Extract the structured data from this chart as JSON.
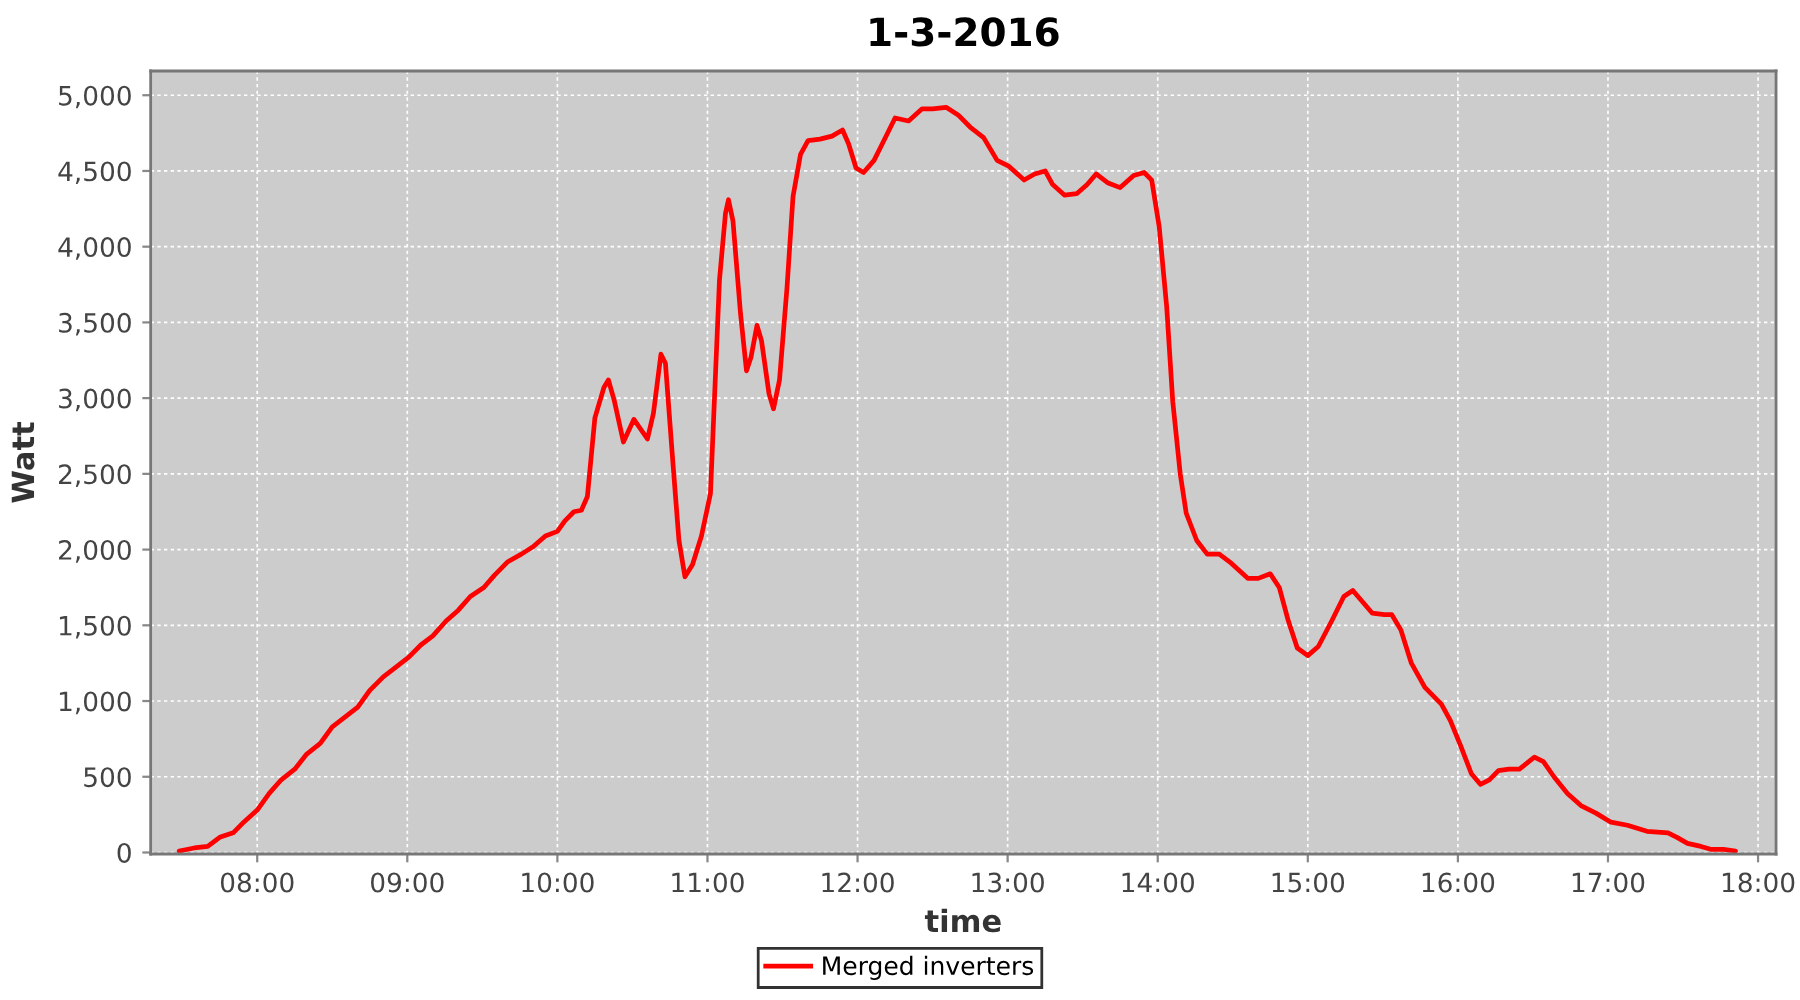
{
  "chart_data": {
    "type": "line",
    "title": "1-3-2016",
    "xlabel": "time",
    "ylabel": "Watt",
    "xlim": [
      7.29,
      18.12
    ],
    "xticks": [
      {
        "value": 8,
        "label": "08:00"
      },
      {
        "value": 9,
        "label": "09:00"
      },
      {
        "value": 10,
        "label": "10:00"
      },
      {
        "value": 11,
        "label": "11:00"
      },
      {
        "value": 12,
        "label": "12:00"
      },
      {
        "value": 13,
        "label": "13:00"
      },
      {
        "value": 14,
        "label": "14:00"
      },
      {
        "value": 15,
        "label": "15:00"
      },
      {
        "value": 16,
        "label": "16:00"
      },
      {
        "value": 17,
        "label": "17:00"
      },
      {
        "value": 18,
        "label": "18:00"
      }
    ],
    "ylim": [
      -10,
      5160
    ],
    "yticks": [
      0,
      500,
      {
        "value": 1000,
        "label": "1,000"
      },
      {
        "value": 1500,
        "label": "1,500"
      },
      {
        "value": 2000,
        "label": "2,000"
      },
      {
        "value": 2500,
        "label": "2,500"
      },
      {
        "value": 3000,
        "label": "3,000"
      },
      {
        "value": 3500,
        "label": "3,500"
      },
      {
        "value": 4000,
        "label": "4,000"
      },
      {
        "value": 4500,
        "label": "4,500"
      },
      {
        "value": 5000,
        "label": "5,000"
      }
    ],
    "grid": true,
    "legend": "bottom",
    "marker": "none",
    "line_style": "solid",
    "series": [
      {
        "name": "Merged inverters",
        "color": "#ff0000",
        "x": [
          7.48,
          7.58,
          7.67,
          7.75,
          7.84,
          7.91,
          8.0,
          8.08,
          8.16,
          8.25,
          8.33,
          8.42,
          8.5,
          8.58,
          8.67,
          8.75,
          8.84,
          8.92,
          9.01,
          9.09,
          9.17,
          9.26,
          9.34,
          9.42,
          9.51,
          9.58,
          9.67,
          9.76,
          9.84,
          9.92,
          10.0,
          10.05,
          10.11,
          10.16,
          10.2,
          10.25,
          10.31,
          10.34,
          10.38,
          10.44,
          10.51,
          10.6,
          10.64,
          10.69,
          10.72,
          10.77,
          10.81,
          10.85,
          10.9,
          10.96,
          11.02,
          11.08,
          11.12,
          11.14,
          11.17,
          11.22,
          11.26,
          11.29,
          11.33,
          11.36,
          11.41,
          11.44,
          11.48,
          11.53,
          11.57,
          11.62,
          11.67,
          11.75,
          11.83,
          11.9,
          11.94,
          11.99,
          12.04,
          12.11,
          12.17,
          12.25,
          12.34,
          12.43,
          12.5,
          12.59,
          12.67,
          12.75,
          12.84,
          12.93,
          13.01,
          13.11,
          13.18,
          13.25,
          13.3,
          13.38,
          13.46,
          13.53,
          13.59,
          13.67,
          13.75,
          13.84,
          13.91,
          13.96,
          14.01,
          14.06,
          14.1,
          14.15,
          14.19,
          14.26,
          14.33,
          14.41,
          14.49,
          14.6,
          14.67,
          14.75,
          14.81,
          14.87,
          14.93,
          15.0,
          15.07,
          15.16,
          15.24,
          15.3,
          15.36,
          15.43,
          15.51,
          15.56,
          15.62,
          15.69,
          15.78,
          15.89,
          15.95,
          16.02,
          16.09,
          16.15,
          16.21,
          16.27,
          16.34,
          16.41,
          16.46,
          16.51,
          16.57,
          16.64,
          16.73,
          16.82,
          16.92,
          17.02,
          17.13,
          17.26,
          17.4,
          17.46,
          17.53,
          17.62,
          17.69,
          17.77,
          17.85
        ],
        "values": [
          10,
          30,
          40,
          100,
          130,
          200,
          280,
          390,
          480,
          550,
          650,
          720,
          830,
          890,
          960,
          1070,
          1160,
          1220,
          1290,
          1370,
          1430,
          1530,
          1600,
          1690,
          1750,
          1830,
          1920,
          1970,
          2020,
          2090,
          2120,
          2190,
          2250,
          2260,
          2350,
          2870,
          3070,
          3120,
          2980,
          2710,
          2860,
          2730,
          2900,
          3290,
          3230,
          2570,
          2060,
          1820,
          1900,
          2090,
          2370,
          3780,
          4220,
          4310,
          4170,
          3560,
          3180,
          3270,
          3480,
          3380,
          3030,
          2930,
          3120,
          3730,
          4330,
          4610,
          4700,
          4710,
          4730,
          4770,
          4680,
          4520,
          4490,
          4570,
          4690,
          4850,
          4830,
          4910,
          4910,
          4920,
          4870,
          4790,
          4720,
          4570,
          4530,
          4440,
          4480,
          4500,
          4410,
          4340,
          4350,
          4410,
          4480,
          4420,
          4390,
          4470,
          4490,
          4440,
          4130,
          3600,
          2980,
          2500,
          2240,
          2060,
          1970,
          1970,
          1910,
          1810,
          1810,
          1840,
          1750,
          1530,
          1350,
          1300,
          1360,
          1530,
          1690,
          1730,
          1660,
          1580,
          1570,
          1570,
          1470,
          1250,
          1090,
          980,
          870,
          700,
          520,
          450,
          480,
          540,
          550,
          550,
          590,
          630,
          600,
          500,
          390,
          310,
          260,
          200,
          180,
          140,
          130,
          100,
          60,
          40,
          20,
          20,
          10
        ]
      }
    ]
  }
}
